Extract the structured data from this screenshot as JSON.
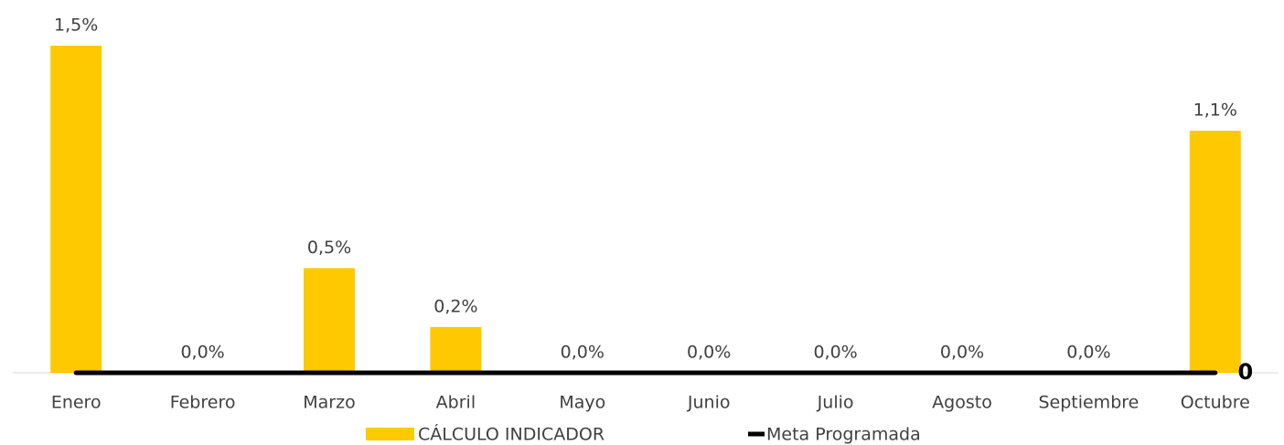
{
  "chart_data": {
    "type": "bar",
    "categories": [
      "Enero",
      "Febrero",
      "Marzo",
      "Abril",
      "Mayo",
      "Junio",
      "Julio",
      "Agosto",
      "Septiembre",
      "Octubre"
    ],
    "series": [
      {
        "name": "CÁLCULO INDICADOR",
        "type": "bar",
        "color": "#ffc900",
        "values": [
          1.5,
          0,
          0.48,
          0.21,
          0,
          0,
          0,
          0,
          0,
          1.11
        ],
        "value_labels": [
          "1,5%",
          "0,0%",
          "0,5%",
          "0,2%",
          "0,0%",
          "0,0%",
          "0,0%",
          "0,0%",
          "0,0%",
          "1,1%"
        ]
      },
      {
        "name": "Meta Programada",
        "type": "line",
        "color": "#000000",
        "values": [
          0,
          0,
          0,
          0,
          0,
          0,
          0,
          0,
          0,
          0
        ]
      }
    ],
    "ylim": [
      0,
      1.5
    ]
  }
}
